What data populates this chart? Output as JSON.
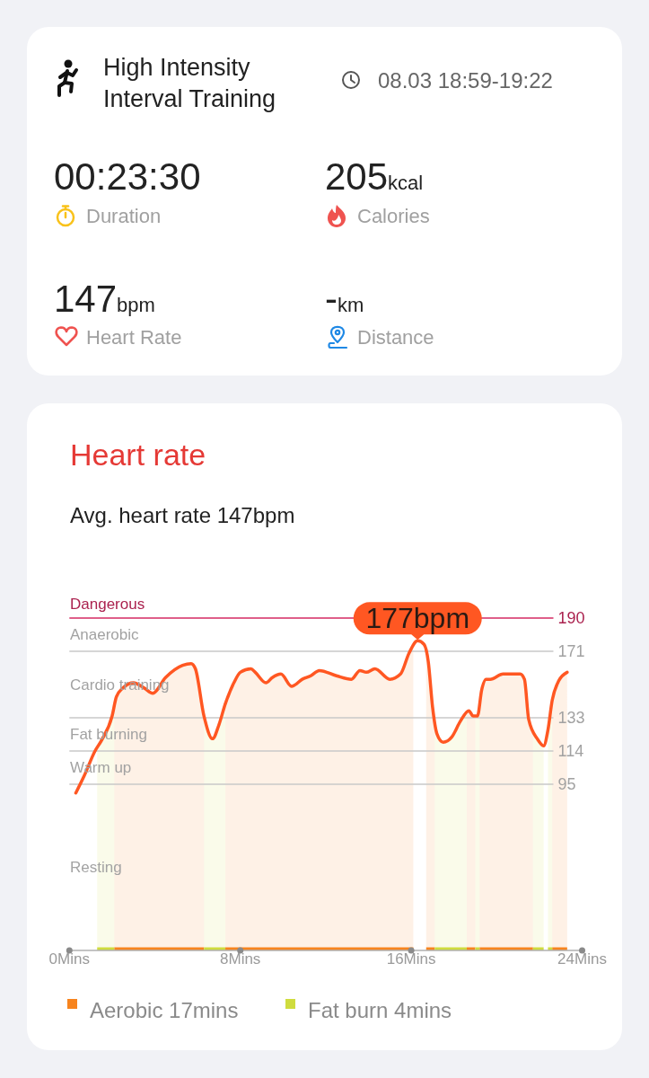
{
  "chart_data": [
    {
      "type": "other",
      "title": "High Intensity Interval Training",
      "subtitle": "08.03 18:59-19:22",
      "annotations": [
        "00:23:30",
        "Duration",
        "205kcal",
        "Calories",
        "147bpm",
        "Heart Rate",
        "-km",
        "Distance"
      ]
    },
    {
      "type": "line",
      "title": "Heart rate",
      "subtitle": "Avg. heart rate 147bpm",
      "x": [
        0.3,
        0.7,
        1.2,
        1.5,
        2.0,
        2.2,
        2.5,
        3.0,
        3.5,
        3.9,
        4.5,
        5.3,
        5.7,
        5.9,
        6.3,
        6.7,
        7.0,
        7.3,
        7.7,
        8.0,
        8.5,
        8.7,
        9.2,
        9.5,
        9.9,
        10.4,
        10.9,
        11.3,
        11.7,
        12.5,
        13.2,
        13.6,
        13.9,
        14.3,
        15.0,
        15.5,
        15.9,
        16.3,
        16.6,
        16.8,
        17.0,
        17.2,
        17.5,
        17.9,
        18.3,
        18.7,
        18.9,
        19.1,
        19.3,
        19.5,
        19.7,
        20.3,
        20.7,
        21.1,
        21.3,
        21.5,
        21.9,
        22.2,
        22.4,
        22.6,
        22.9,
        23.3
      ],
      "series": [
        {
          "type": "line",
          "color": "#ff5722",
          "values": [
            90,
            100,
            114,
            120,
            134,
            145,
            150,
            153,
            150,
            147,
            156,
            163,
            164,
            161,
            134,
            121,
            129,
            141,
            153,
            159,
            161,
            159,
            153,
            156,
            158,
            151,
            155,
            157,
            160,
            157,
            155,
            160,
            159,
            161,
            155,
            158,
            170,
            177,
            175,
            165,
            139,
            124,
            119,
            122,
            131,
            137,
            134,
            134,
            149,
            155,
            155,
            158,
            158,
            158,
            155,
            132,
            121,
            117,
            126,
            143,
            154,
            159
          ]
        },
        {
          "type": "area",
          "name": "Aerobic 17mins",
          "color": "#f7841e",
          "x": [
            2.1,
            2.2,
            2.5,
            3.0,
            3.5,
            3.9,
            4.5,
            5.3,
            5.7,
            5.9,
            6.3,
            6.8,
            7.3,
            7.7,
            8.0,
            8.5,
            8.7,
            9.2,
            9.5,
            9.9,
            10.4,
            10.9,
            11.3,
            11.7,
            12.5,
            13.2,
            13.6,
            13.9,
            14.3,
            15.0,
            15.5,
            15.9,
            16.1,
            16.4,
            16.7,
            16.8,
            17.0,
            17.1,
            17.8,
            18.6,
            18.7,
            18.9,
            19.0,
            19.1,
            19.2,
            19.3,
            19.5,
            19.7,
            20.3,
            20.7,
            21.1,
            21.3,
            21.5,
            21.7,
            22.2,
            22.6,
            22.9,
            23.3
          ],
          "values": [
            140,
            145,
            150,
            153,
            150,
            147,
            156,
            163,
            164,
            161,
            134,
            null,
            141,
            153,
            159,
            161,
            159,
            153,
            156,
            158,
            151,
            155,
            157,
            160,
            157,
            155,
            160,
            159,
            161,
            155,
            158,
            170,
            174,
            null,
            170,
            165,
            139,
            131,
            null,
            136,
            137,
            134,
            134,
            null,
            141,
            149,
            155,
            155,
            158,
            158,
            158,
            155,
            132,
            126,
            null,
            143,
            154,
            159
          ]
        },
        {
          "type": "area",
          "name": "Fat burn 4mins",
          "color": "#cfdc3e",
          "x": [
            1.3,
            1.5,
            2.0,
            2.1,
            4.0,
            6.3,
            6.7,
            7.0,
            7.3,
            12.0,
            17.1,
            17.2,
            17.5,
            17.9,
            18.3,
            18.6,
            18.8,
            19.0,
            19.1,
            19.2,
            20.0,
            21.7,
            21.9,
            22.2,
            22.3,
            22.4,
            22.6
          ],
          "values": [
            116,
            120,
            134,
            140,
            null,
            134,
            121,
            129,
            141,
            null,
            131,
            124,
            119,
            122,
            131,
            136,
            null,
            134,
            134,
            141,
            null,
            126,
            121,
            117,
            null,
            126,
            143
          ]
        }
      ],
      "xlim": [
        0,
        24
      ],
      "xticks": [
        {
          "value": 0,
          "label": "0Mins"
        },
        {
          "value": 8,
          "label": "8Mins"
        },
        {
          "value": 16,
          "label": "16Mins"
        },
        {
          "value": 24,
          "label": "24Mins"
        }
      ],
      "ylim": [
        0,
        190
      ],
      "yticks": [
        95,
        114,
        133,
        171,
        190
      ],
      "ref_lines": [
        {
          "axis": "y",
          "value": 190,
          "label": "Dangerous",
          "color": "#d42a62"
        },
        {
          "axis": "y",
          "value": 171,
          "label": "Anaerobic",
          "color": "#c9c9c9"
        },
        {
          "axis": "y",
          "value": 133,
          "label": "Cardio training",
          "color": "#c9c9c9"
        },
        {
          "axis": "y",
          "value": 114,
          "label": "Fat burning",
          "color": "#c9c9c9"
        },
        {
          "axis": "y",
          "value": 95,
          "label": "Warm up",
          "color": "#c9c9c9"
        }
      ],
      "annotations": [
        {
          "text": "177bpm",
          "x": 16.3,
          "y": 177
        },
        "Resting"
      ],
      "legend": "bottom"
    }
  ]
}
